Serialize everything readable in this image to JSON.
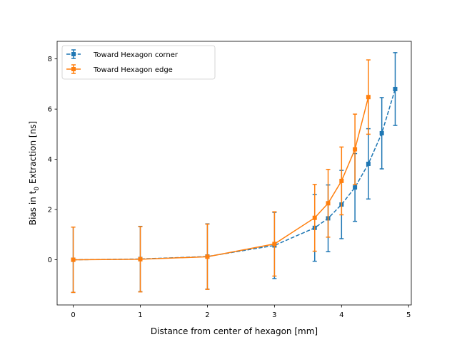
{
  "chart_data": {
    "type": "line",
    "xlabel": "Distance from center of hexagon [mm]",
    "ylabel_main": "Bias in t",
    "ylabel_sub": "0",
    "ylabel_tail": " Extraction [ns]",
    "xlim": [
      -0.24,
      5.04
    ],
    "ylim": [
      -1.8,
      8.7
    ],
    "xticks": [
      0,
      1,
      2,
      3,
      4,
      5
    ],
    "yticks": [
      0,
      2,
      4,
      6,
      8
    ],
    "legend_position": "upper-left",
    "series": [
      {
        "name": "Toward Hexagon corner",
        "color": "#1f77b4",
        "linestyle": "dashed",
        "marker": "square",
        "x": [
          0,
          1,
          2,
          3,
          3.6,
          3.8,
          4.0,
          4.2,
          4.4,
          4.6,
          4.8
        ],
        "y": [
          0.0,
          0.03,
          0.13,
          0.57,
          1.27,
          1.65,
          2.2,
          2.88,
          3.82,
          5.04,
          6.8
        ],
        "yerr": [
          1.3,
          1.3,
          1.3,
          1.32,
          1.33,
          1.33,
          1.36,
          1.35,
          1.4,
          1.42,
          1.45
        ]
      },
      {
        "name": "Toward Hexagon edge",
        "color": "#ff7f0e",
        "linestyle": "solid",
        "marker": "square",
        "x": [
          0,
          1,
          2,
          3,
          3.6,
          3.8,
          4.0,
          4.2,
          4.4
        ],
        "y": [
          0.0,
          0.02,
          0.12,
          0.63,
          1.67,
          2.25,
          3.14,
          4.4,
          6.48
        ],
        "yerr": [
          1.3,
          1.3,
          1.3,
          1.28,
          1.33,
          1.35,
          1.35,
          1.4,
          1.48
        ]
      }
    ]
  }
}
